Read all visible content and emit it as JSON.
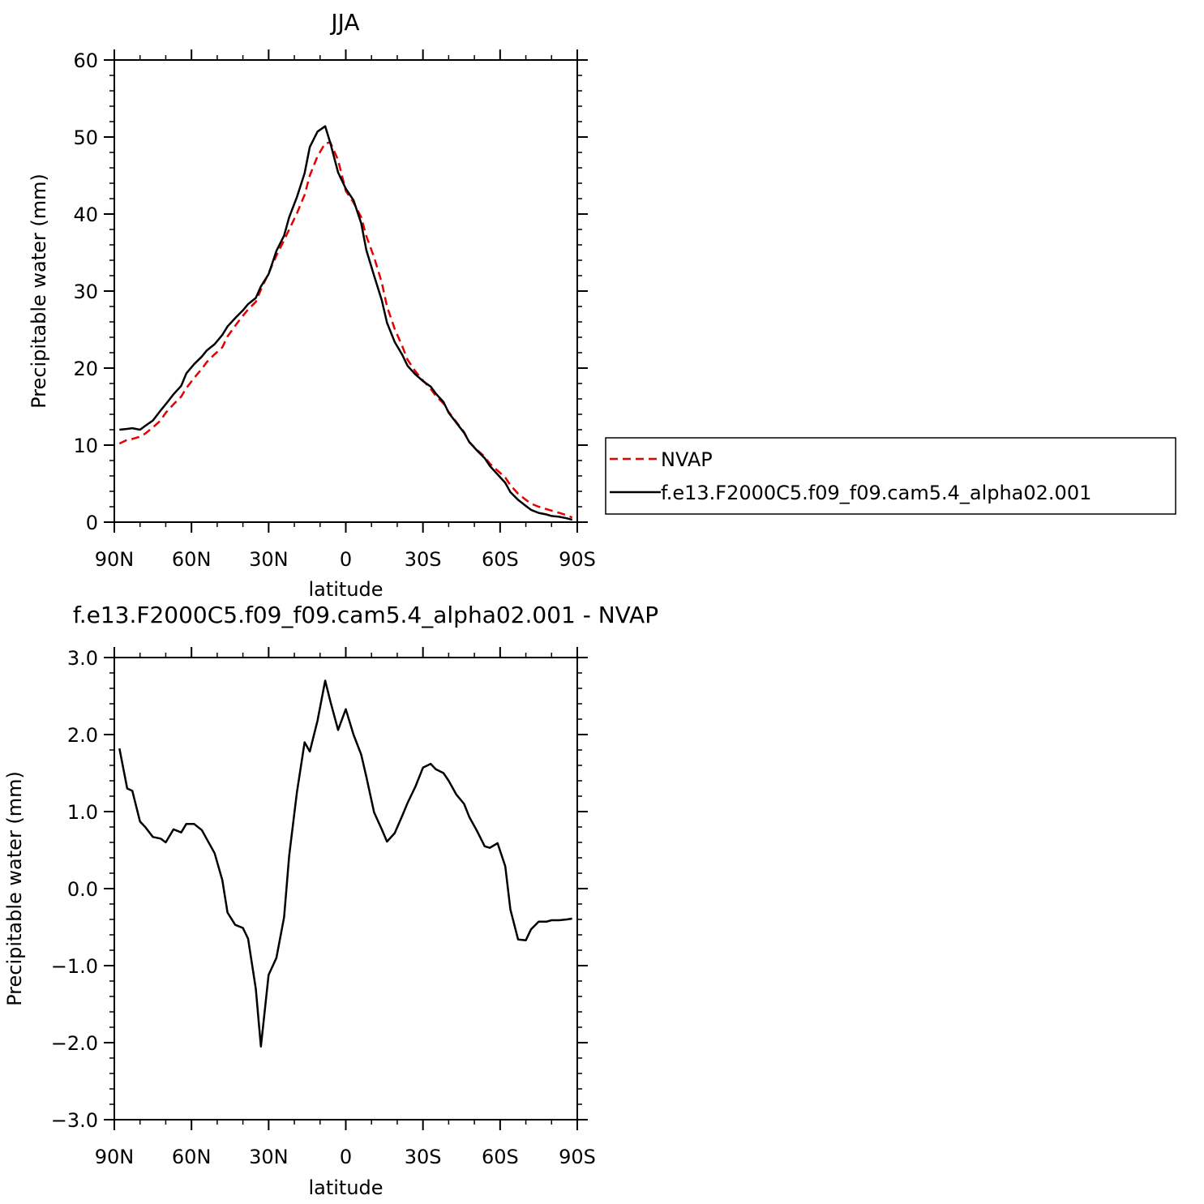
{
  "chart_data": [
    {
      "type": "line",
      "title": "JJA",
      "xlabel": "latitude",
      "ylabel": "Precipitable water (mm)",
      "xlim": [
        90,
        -90
      ],
      "ylim": [
        0,
        60
      ],
      "xticks": [
        90,
        60,
        30,
        0,
        -30,
        -60,
        -90
      ],
      "xtick_labels": [
        "90N",
        "60N",
        "30N",
        "0",
        "30S",
        "60S",
        "90S"
      ],
      "yticks": [
        0,
        10,
        20,
        30,
        40,
        50,
        60
      ],
      "ytick_labels": [
        "0",
        "10",
        "20",
        "30",
        "40",
        "50",
        "60"
      ],
      "grid": false,
      "legend": "right",
      "series": [
        {
          "name": "NVAP",
          "color": "#e60000",
          "style": "dashed",
          "x": [
            88,
            85,
            83,
            80,
            78,
            75,
            72,
            70,
            67,
            64,
            62,
            59,
            56,
            54,
            51,
            48,
            46,
            43,
            40,
            38,
            35,
            33,
            30,
            27,
            24,
            22,
            19,
            16,
            14,
            11,
            8,
            6,
            3,
            0,
            -3,
            -6,
            -8,
            -11,
            -14,
            -16,
            -19,
            -22,
            -24,
            -27,
            -30,
            -33,
            -35,
            -38,
            -40,
            -43,
            -46,
            -48,
            -51,
            -54,
            -56,
            -59,
            -62,
            -64,
            -67,
            -70,
            -72,
            -75,
            -78,
            -80,
            -83,
            -86,
            -88
          ],
          "y": [
            10.2,
            10.7,
            10.8,
            11.1,
            11.5,
            12.3,
            13.2,
            14.2,
            15.3,
            16.3,
            17.4,
            18.7,
            19.9,
            20.8,
            21.8,
            22.7,
            24.1,
            25.5,
            26.8,
            27.6,
            28.6,
            30.2,
            32.3,
            34.6,
            36.6,
            38.0,
            40.1,
            42.5,
            45.0,
            47.5,
            49.2,
            49.3,
            47.0,
            43.0,
            41.5,
            39.6,
            37.1,
            34.4,
            31.1,
            28.0,
            25.1,
            22.8,
            21.1,
            19.6,
            18.4,
            17.3,
            16.4,
            15.4,
            14.3,
            13.0,
            11.7,
            10.4,
            9.4,
            8.5,
            7.6,
            6.7,
            5.8,
            4.8,
            3.7,
            2.9,
            2.4,
            2.0,
            1.7,
            1.5,
            1.2,
            0.9,
            0.6
          ]
        },
        {
          "name": "f.e13.F2000C5.f09_f09.cam5.4_alpha02.001",
          "color": "#000000",
          "style": "solid",
          "x": [
            88,
            85,
            83,
            80,
            78,
            75,
            72,
            70,
            67,
            64,
            62,
            59,
            56,
            54,
            51,
            48,
            46,
            43,
            40,
            38,
            35,
            33,
            30,
            27,
            24,
            22,
            19,
            16,
            14,
            11,
            8,
            6,
            3,
            0,
            -3,
            -6,
            -8,
            -11,
            -14,
            -16,
            -19,
            -22,
            -24,
            -27,
            -30,
            -33,
            -35,
            -38,
            -40,
            -43,
            -46,
            -48,
            -51,
            -54,
            -56,
            -59,
            -62,
            -64,
            -67,
            -70,
            -72,
            -75,
            -78,
            -80,
            -83,
            -86,
            -88
          ],
          "y": [
            12.0,
            12.1,
            12.2,
            12.0,
            12.5,
            13.2,
            14.5,
            15.3,
            16.6,
            17.7,
            19.3,
            20.5,
            21.5,
            22.3,
            23.1,
            24.3,
            25.4,
            26.5,
            27.5,
            28.3,
            29.1,
            30.6,
            32.2,
            35.2,
            37.2,
            39.6,
            42.2,
            45.3,
            48.7,
            50.7,
            51.4,
            49.2,
            45.4,
            43.3,
            41.8,
            38.8,
            35.3,
            32.0,
            28.8,
            25.9,
            23.4,
            21.7,
            20.3,
            19.2,
            18.3,
            17.6,
            16.7,
            15.6,
            14.2,
            12.9,
            11.6,
            10.4,
            9.3,
            8.3,
            7.3,
            6.2,
            5.1,
            3.9,
            2.9,
            2.1,
            1.6,
            1.2,
            1.0,
            0.8,
            0.7,
            0.5,
            0.3
          ]
        }
      ]
    },
    {
      "type": "line",
      "title": "f.e13.F2000C5.f09_f09.cam5.4_alpha02.001 - NVAP",
      "xlabel": "latitude",
      "ylabel": "Precipitable water (mm)",
      "xlim": [
        90,
        -90
      ],
      "ylim": [
        -3,
        3
      ],
      "xticks": [
        90,
        60,
        30,
        0,
        -30,
        -60,
        -90
      ],
      "xtick_labels": [
        "90N",
        "60N",
        "30N",
        "0",
        "30S",
        "60S",
        "90S"
      ],
      "yticks": [
        -3,
        -2,
        -1,
        0,
        1,
        2,
        3
      ],
      "ytick_labels": [
        "−3.0",
        "−2.0",
        "−1.0",
        "0.0",
        "1.0",
        "2.0",
        "3.0"
      ],
      "grid": false,
      "series": [
        {
          "color": "#000000",
          "style": "solid",
          "x": [
            88,
            85,
            83,
            80,
            78,
            75,
            72,
            70,
            67,
            64,
            62,
            59,
            56,
            54,
            51,
            48,
            46,
            43,
            40,
            38,
            35,
            33,
            30,
            27,
            24,
            22,
            19,
            16,
            14,
            11,
            8,
            6,
            3,
            0,
            -3,
            -6,
            -8,
            -11,
            -14,
            -16,
            -19,
            -22,
            -24,
            -27,
            -30,
            -33,
            -35,
            -38,
            -40,
            -43,
            -46,
            -48,
            -51,
            -54,
            -56,
            -59,
            -62,
            -64,
            -67,
            -70,
            -72,
            -75,
            -78,
            -80,
            -83,
            -86,
            -88
          ],
          "y": [
            1.82,
            1.3,
            1.27,
            0.87,
            0.8,
            0.67,
            0.65,
            0.6,
            0.77,
            0.73,
            0.84,
            0.84,
            0.76,
            0.64,
            0.46,
            0.11,
            -0.31,
            -0.47,
            -0.51,
            -0.65,
            -1.3,
            -2.05,
            -1.12,
            -0.9,
            -0.37,
            0.43,
            1.25,
            1.9,
            1.78,
            2.18,
            2.7,
            2.43,
            2.06,
            2.33,
            2.0,
            1.74,
            1.45,
            0.99,
            0.77,
            0.61,
            0.72,
            0.95,
            1.11,
            1.32,
            1.57,
            1.62,
            1.55,
            1.5,
            1.4,
            1.22,
            1.1,
            0.93,
            0.75,
            0.55,
            0.53,
            0.59,
            0.29,
            -0.27,
            -0.66,
            -0.67,
            -0.53,
            -0.43,
            -0.43,
            -0.41,
            -0.41,
            -0.4,
            -0.39
          ]
        }
      ]
    }
  ]
}
